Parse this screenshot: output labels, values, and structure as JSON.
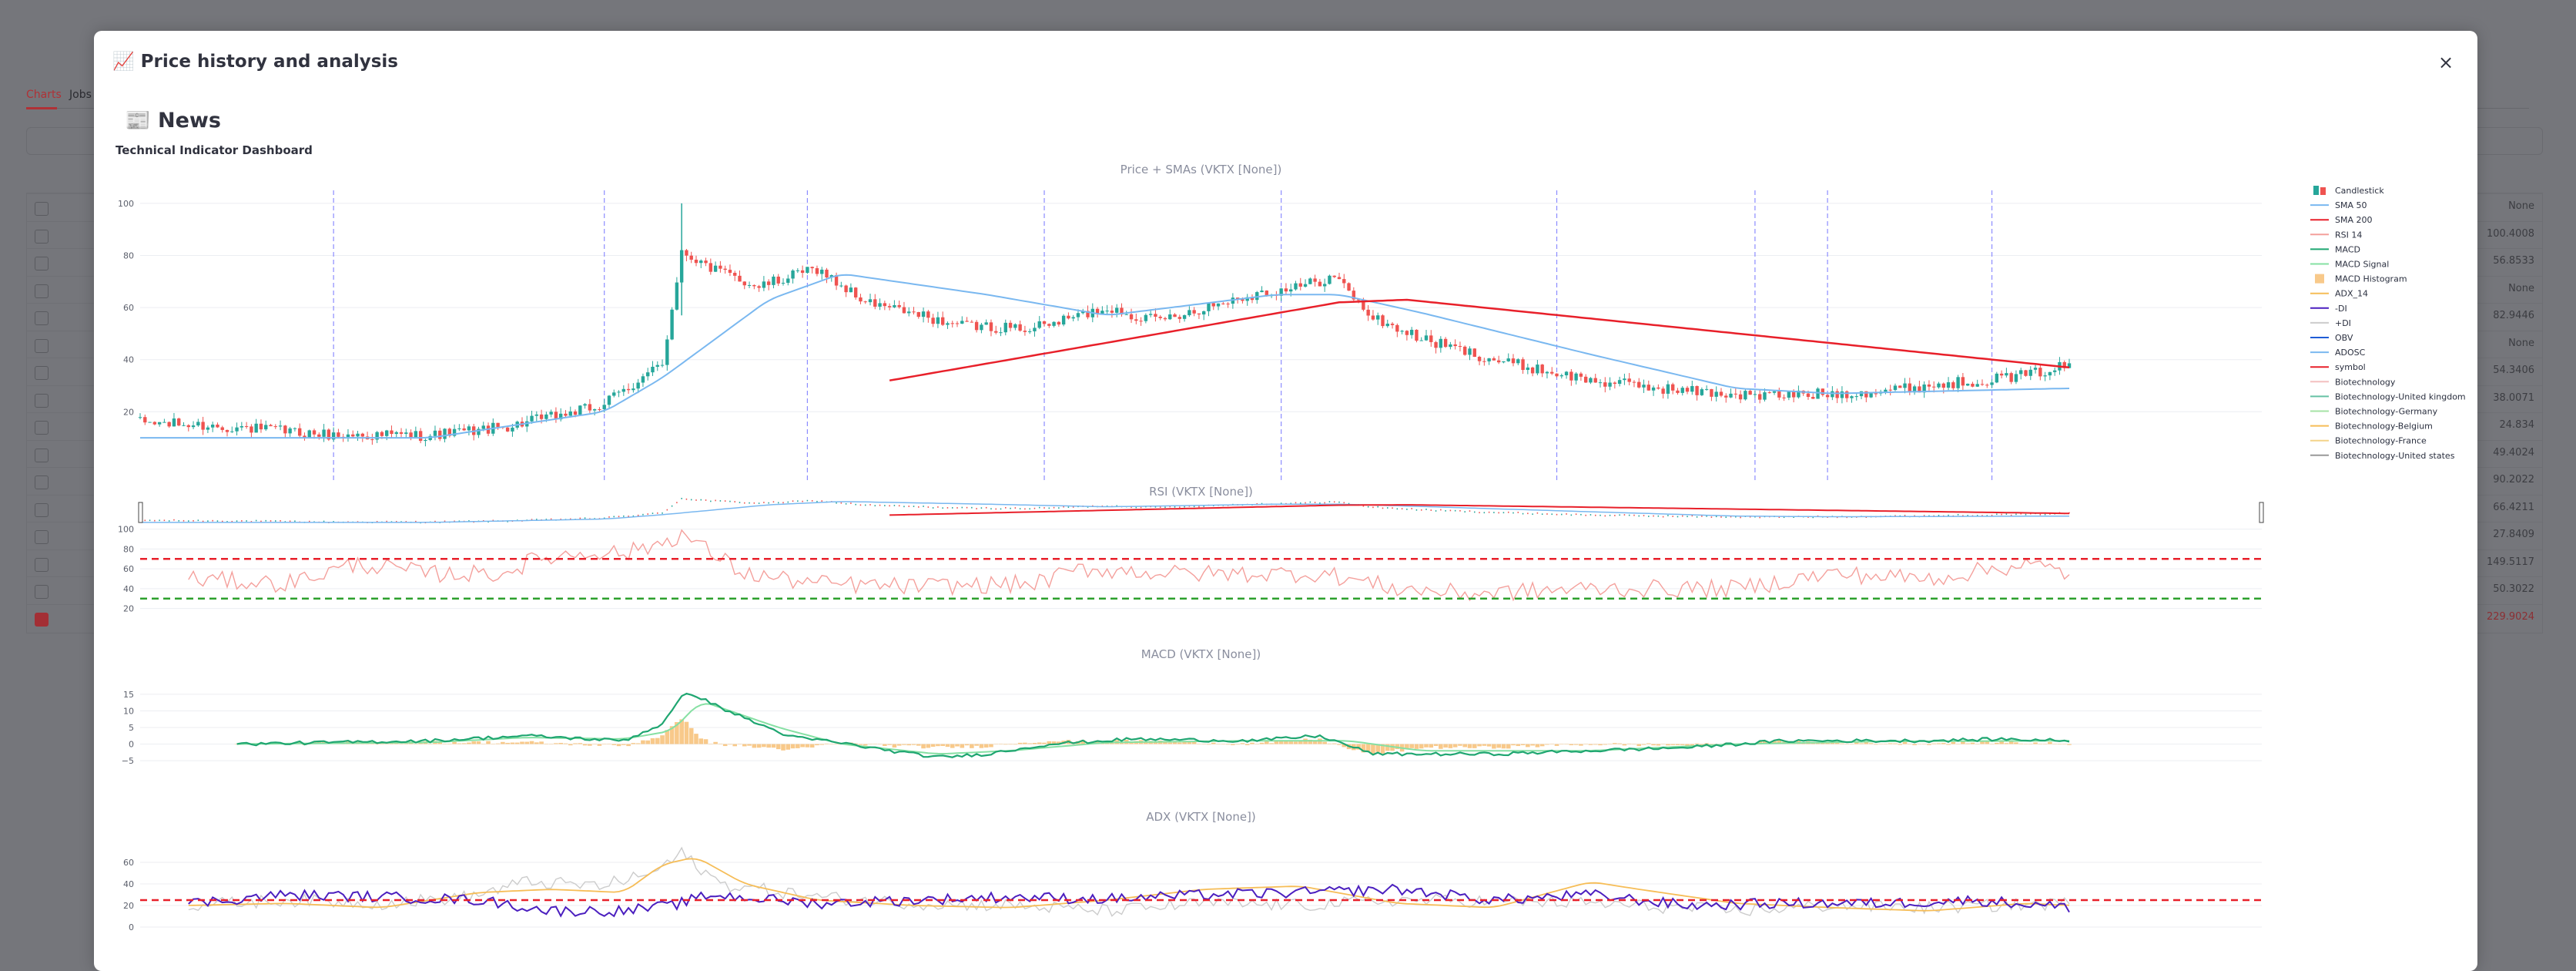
{
  "background": {
    "tabs": [
      "Charts",
      "Jobs"
    ],
    "rows": [
      {
        "idx": "0",
        "value": "None"
      },
      {
        "idx": "1",
        "value": "100.4008"
      },
      {
        "idx": "2",
        "value": "56.8533"
      },
      {
        "idx": "3",
        "value": "None"
      },
      {
        "idx": "4",
        "value": "82.9446"
      },
      {
        "idx": "5",
        "value": "None"
      },
      {
        "idx": "6",
        "value": "54.3406"
      },
      {
        "idx": "7",
        "value": "38.0071"
      },
      {
        "idx": "8",
        "value": "24.834"
      },
      {
        "idx": "9",
        "value": "49.4024"
      },
      {
        "idx": "10",
        "value": "90.2022"
      },
      {
        "idx": "11",
        "value": "66.4211"
      },
      {
        "idx": "12",
        "value": "27.8409"
      },
      {
        "idx": "13",
        "value": "149.5117"
      },
      {
        "idx": "14",
        "value": "50.3022"
      },
      {
        "idx": "15",
        "value": "229.9024"
      }
    ],
    "checked_row": "15"
  },
  "modal": {
    "title": "📈 Price history and analysis",
    "close_label": "×",
    "news_heading": "📰 News",
    "dashboard_title": "Technical Indicator Dashboard"
  },
  "colors": {
    "up": "#26a69a",
    "down": "#ef5350",
    "sma50": "#7ab8f0",
    "sma200": "#e8202a",
    "rsi": "#f4a09c",
    "macd": "#1fa671",
    "macd_signal": "#86e0a3",
    "macd_hist": "#f8c98a",
    "adx": "#f6bd57",
    "minus_di": "#4b1fbf",
    "plus_di": "#cccccc",
    "ref_red": "#e8202a",
    "ref_green": "#2ca02c",
    "vline": "#8c8cff"
  },
  "chart_data": [
    {
      "type": "candlestick",
      "title": "Price + SMAs (VKTX [None])",
      "yticks": [
        20,
        40,
        60,
        80,
        100
      ],
      "ylim": [
        5,
        105
      ],
      "x_count": 400,
      "event_markers_index": [
        40,
        96,
        138,
        187,
        236,
        293,
        334,
        349,
        383
      ],
      "anchors_close": [
        [
          0,
          16
        ],
        [
          20,
          14
        ],
        [
          40,
          11
        ],
        [
          60,
          11
        ],
        [
          75,
          14
        ],
        [
          95,
          22
        ],
        [
          108,
          38
        ],
        [
          112,
          82
        ],
        [
          118,
          75
        ],
        [
          128,
          68
        ],
        [
          140,
          75
        ],
        [
          150,
          62
        ],
        [
          170,
          53
        ],
        [
          185,
          52
        ],
        [
          200,
          60
        ],
        [
          210,
          55
        ],
        [
          230,
          65
        ],
        [
          240,
          68
        ],
        [
          247,
          72
        ],
        [
          255,
          56
        ],
        [
          265,
          48
        ],
        [
          280,
          40
        ],
        [
          300,
          32
        ],
        [
          320,
          28
        ],
        [
          335,
          26
        ],
        [
          350,
          27
        ],
        [
          360,
          28
        ],
        [
          375,
          31
        ],
        [
          390,
          34
        ],
        [
          399,
          38
        ]
      ],
      "sma50_anchors": [
        [
          20,
          10
        ],
        [
          60,
          10
        ],
        [
          96,
          20
        ],
        [
          108,
          33
        ],
        [
          130,
          63
        ],
        [
          145,
          73
        ],
        [
          175,
          65
        ],
        [
          200,
          57
        ],
        [
          235,
          65
        ],
        [
          248,
          65
        ],
        [
          265,
          58
        ],
        [
          300,
          42
        ],
        [
          330,
          29
        ],
        [
          350,
          27
        ],
        [
          399,
          29
        ]
      ],
      "sma200_anchors": [
        [
          155,
          32
        ],
        [
          248,
          62
        ],
        [
          262,
          63
        ],
        [
          399,
          37
        ]
      ]
    },
    {
      "type": "line",
      "title": "RSI (VKTX [None])",
      "yticks": [
        20,
        40,
        60,
        80,
        100
      ],
      "ylim": [
        15,
        102
      ],
      "reference_lines": [
        70,
        30
      ],
      "anchors": [
        [
          10,
          50
        ],
        [
          30,
          45
        ],
        [
          45,
          65
        ],
        [
          60,
          55
        ],
        [
          75,
          55
        ],
        [
          82,
          70
        ],
        [
          95,
          78
        ],
        [
          100,
          75
        ],
        [
          107,
          85
        ],
        [
          112,
          95
        ],
        [
          125,
          55
        ],
        [
          140,
          45
        ],
        [
          160,
          42
        ],
        [
          185,
          45
        ],
        [
          195,
          60
        ],
        [
          215,
          55
        ],
        [
          245,
          55
        ],
        [
          260,
          40
        ],
        [
          275,
          35
        ],
        [
          300,
          40
        ],
        [
          330,
          40
        ],
        [
          350,
          55
        ],
        [
          370,
          50
        ],
        [
          390,
          65
        ],
        [
          399,
          55
        ]
      ]
    },
    {
      "type": "line",
      "title": "MACD (VKTX [None])",
      "yticks": [
        -5,
        0,
        5,
        10,
        15
      ],
      "ylim": [
        -8,
        18
      ],
      "macd_anchors": [
        [
          20,
          0
        ],
        [
          60,
          1
        ],
        [
          80,
          2.5
        ],
        [
          100,
          1
        ],
        [
          108,
          6
        ],
        [
          113,
          16
        ],
        [
          120,
          11
        ],
        [
          128,
          6
        ],
        [
          135,
          2
        ],
        [
          142,
          1
        ],
        [
          155,
          -2
        ],
        [
          165,
          -4
        ],
        [
          175,
          -3
        ],
        [
          188,
          0
        ],
        [
          205,
          1.5
        ],
        [
          230,
          1
        ],
        [
          244,
          2.5
        ],
        [
          255,
          -3
        ],
        [
          280,
          -3
        ],
        [
          300,
          -2
        ],
        [
          320,
          -1
        ],
        [
          340,
          1
        ],
        [
          370,
          1
        ],
        [
          385,
          1.5
        ],
        [
          399,
          1
        ]
      ],
      "signal_anchors": [
        [
          20,
          0
        ],
        [
          60,
          0.5
        ],
        [
          80,
          2
        ],
        [
          100,
          1.5
        ],
        [
          110,
          4
        ],
        [
          116,
          13
        ],
        [
          122,
          10
        ],
        [
          132,
          5
        ],
        [
          145,
          0
        ],
        [
          165,
          -3
        ],
        [
          180,
          -2
        ],
        [
          200,
          0.5
        ],
        [
          230,
          1
        ],
        [
          250,
          1
        ],
        [
          265,
          -2
        ],
        [
          300,
          -2
        ],
        [
          330,
          0
        ],
        [
          360,
          0.8
        ],
        [
          399,
          1
        ]
      ]
    },
    {
      "type": "line",
      "title": "ADX (VKTX [None])",
      "yticks": [
        0,
        20,
        40,
        60
      ],
      "ylim": [
        -5,
        75
      ],
      "reference_lines": [
        25
      ],
      "adx_anchors": [
        [
          10,
          20
        ],
        [
          30,
          22
        ],
        [
          50,
          18
        ],
        [
          70,
          32
        ],
        [
          85,
          35
        ],
        [
          100,
          32
        ],
        [
          108,
          58
        ],
        [
          115,
          65
        ],
        [
          125,
          40
        ],
        [
          140,
          25
        ],
        [
          160,
          20
        ],
        [
          180,
          18
        ],
        [
          200,
          25
        ],
        [
          220,
          35
        ],
        [
          240,
          38
        ],
        [
          260,
          22
        ],
        [
          280,
          18
        ],
        [
          300,
          42
        ],
        [
          310,
          35
        ],
        [
          330,
          22
        ],
        [
          350,
          18
        ],
        [
          370,
          15
        ],
        [
          390,
          22
        ],
        [
          399,
          20
        ]
      ],
      "minus_di_anchors": [
        [
          10,
          22
        ],
        [
          30,
          30
        ],
        [
          50,
          28
        ],
        [
          70,
          25
        ],
        [
          85,
          15
        ],
        [
          100,
          15
        ],
        [
          110,
          20
        ],
        [
          118,
          30
        ],
        [
          140,
          22
        ],
        [
          160,
          25
        ],
        [
          180,
          28
        ],
        [
          200,
          26
        ],
        [
          220,
          30
        ],
        [
          240,
          32
        ],
        [
          260,
          35
        ],
        [
          280,
          25
        ],
        [
          300,
          30
        ],
        [
          320,
          20
        ],
        [
          340,
          22
        ],
        [
          360,
          22
        ],
        [
          380,
          25
        ],
        [
          399,
          18
        ]
      ],
      "plus_di_anchors": [
        [
          10,
          20
        ],
        [
          30,
          25
        ],
        [
          50,
          22
        ],
        [
          68,
          28
        ],
        [
          80,
          42
        ],
        [
          95,
          38
        ],
        [
          106,
          50
        ],
        [
          112,
          68
        ],
        [
          120,
          40
        ],
        [
          140,
          28
        ],
        [
          160,
          22
        ],
        [
          180,
          20
        ],
        [
          200,
          15
        ],
        [
          220,
          22
        ],
        [
          240,
          20
        ],
        [
          260,
          25
        ],
        [
          280,
          24
        ],
        [
          300,
          22
        ],
        [
          330,
          15
        ],
        [
          350,
          20
        ],
        [
          370,
          18
        ],
        [
          399,
          22
        ]
      ]
    }
  ],
  "legend": [
    {
      "label": "Candlestick",
      "kind": "candle"
    },
    {
      "label": "SMA 50",
      "kind": "line",
      "color": "#7ab8f0"
    },
    {
      "label": "SMA 200",
      "kind": "line",
      "color": "#e8202a"
    },
    {
      "label": "RSI 14",
      "kind": "line",
      "color": "#f4a09c"
    },
    {
      "label": "MACD",
      "kind": "line",
      "color": "#1fa671"
    },
    {
      "label": "MACD Signal",
      "kind": "line",
      "color": "#86e0a3"
    },
    {
      "label": "MACD Histogram",
      "kind": "bar",
      "color": "#f8c98a"
    },
    {
      "label": "ADX_14",
      "kind": "line",
      "color": "#f6bd57"
    },
    {
      "label": "-DI",
      "kind": "line",
      "color": "#4b1fbf"
    },
    {
      "label": "+DI",
      "kind": "line",
      "color": "#cccccc"
    },
    {
      "label": "OBV",
      "kind": "line",
      "color": "#1f5cd6"
    },
    {
      "label": "ADOSC",
      "kind": "line",
      "color": "#7ab8f0"
    },
    {
      "label": "symbol",
      "kind": "line",
      "color": "#e8202a"
    },
    {
      "label": "Biotechnology",
      "kind": "line",
      "color": "#f4c0c0"
    },
    {
      "label": "Biotechnology-United kingdom",
      "kind": "line",
      "color": "#66c2a5"
    },
    {
      "label": "Biotechnology-Germany",
      "kind": "line",
      "color": "#a6e3a6"
    },
    {
      "label": "Biotechnology-Belgium",
      "kind": "line",
      "color": "#f6bd57"
    },
    {
      "label": "Biotechnology-France",
      "kind": "line",
      "color": "#f4d38a"
    },
    {
      "label": "Biotechnology-United states",
      "kind": "line",
      "color": "#999999"
    }
  ]
}
